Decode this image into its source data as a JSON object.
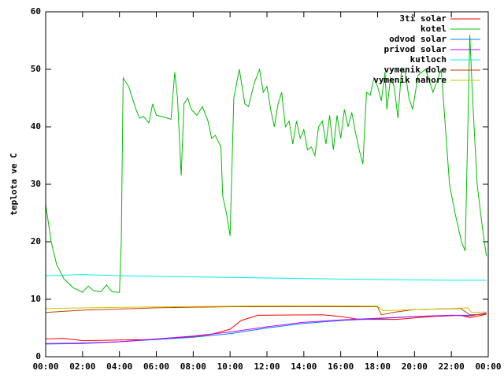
{
  "chart_data": {
    "type": "line",
    "y_label": "teplota ve C",
    "xlim": [
      0,
      24
    ],
    "ylim": [
      0,
      60
    ],
    "yticks": [
      0,
      10,
      20,
      30,
      40,
      50,
      60
    ],
    "xticks": [
      {
        "value": 0,
        "label": "00:00"
      },
      {
        "value": 2,
        "label": "02:00"
      },
      {
        "value": 4,
        "label": "04:00"
      },
      {
        "value": 6,
        "label": "06:00"
      },
      {
        "value": 8,
        "label": "08:00"
      },
      {
        "value": 10,
        "label": "10:00"
      },
      {
        "value": 12,
        "label": "12:00"
      },
      {
        "value": 14,
        "label": "14:00"
      },
      {
        "value": 16,
        "label": "16:00"
      },
      {
        "value": 18,
        "label": "18:00"
      },
      {
        "value": 20,
        "label": "20:00"
      },
      {
        "value": 22,
        "label": "22:00"
      },
      {
        "value": 24,
        "label": "00:00"
      }
    ],
    "legend": "top-right",
    "series": [
      {
        "name": "3ti solar",
        "color": "#ff0000",
        "x": [
          0,
          1,
          2,
          4,
          6,
          8,
          9,
          10,
          10.6,
          11.5,
          15,
          16,
          17,
          19,
          21,
          22.5,
          23,
          23.9
        ],
        "values": [
          3.1,
          3.2,
          2.8,
          2.9,
          3.0,
          3.5,
          3.9,
          4.8,
          6.3,
          7.2,
          7.3,
          7.0,
          6.5,
          6.5,
          7.0,
          7.2,
          6.8,
          7.4
        ]
      },
      {
        "name": "kotel",
        "color": "#00c000",
        "x": [
          0,
          0.3,
          0.6,
          1,
          1.5,
          2,
          2.3,
          2.6,
          3.0,
          3.3,
          3.6,
          4.0,
          4.1,
          4.2,
          4.5,
          4.9,
          5.1,
          5.3,
          5.6,
          5.8,
          6.0,
          6.4,
          6.8,
          7.0,
          7.15,
          7.35,
          7.5,
          7.7,
          7.9,
          8.2,
          8.5,
          8.8,
          9.0,
          9.2,
          9.5,
          9.6,
          9.8,
          10.0,
          10.2,
          10.5,
          10.8,
          11.0,
          11.3,
          11.6,
          11.8,
          12.0,
          12.2,
          12.4,
          12.6,
          12.8,
          13.0,
          13.2,
          13.4,
          13.6,
          13.8,
          14.0,
          14.2,
          14.4,
          14.6,
          14.8,
          15.0,
          15.2,
          15.4,
          15.6,
          15.8,
          16.0,
          16.2,
          16.4,
          16.6,
          16.8,
          17.0,
          17.2,
          17.4,
          17.6,
          17.8,
          18.0,
          18.2,
          18.4,
          18.5,
          18.7,
          18.9,
          19.1,
          19.3,
          19.5,
          19.7,
          19.9,
          20.2,
          20.6,
          21.0,
          21.45,
          21.9,
          22.2,
          22.55,
          22.75,
          23.0,
          23.15,
          23.4,
          23.7,
          23.9
        ],
        "values": [
          26.5,
          20,
          16,
          13.5,
          12,
          11.2,
          12.3,
          11.5,
          11.3,
          12.5,
          11.3,
          11.2,
          20,
          48.5,
          47,
          43,
          41.5,
          41.8,
          40.7,
          44,
          42,
          41.7,
          41.3,
          49.5,
          45,
          31.5,
          44,
          45,
          43,
          42,
          43.5,
          41,
          38,
          38.5,
          36.5,
          28,
          25,
          21,
          45,
          50,
          44,
          43.5,
          47.5,
          50,
          46,
          47,
          43,
          40,
          44,
          46,
          40,
          41,
          37,
          41,
          38,
          39.5,
          36,
          36.5,
          35,
          40,
          41,
          37,
          42,
          36,
          42,
          38,
          43,
          40,
          42.5,
          39,
          36,
          33.5,
          46,
          45.5,
          48.5,
          47,
          44.5,
          49.5,
          43,
          48.5,
          47,
          41.5,
          50,
          49.5,
          45,
          43,
          49,
          50,
          46,
          50,
          30,
          25,
          20,
          18.4,
          56,
          45,
          30,
          22,
          17.5
        ]
      },
      {
        "name": "odvod solar",
        "color": "#0080ff",
        "x": [
          0,
          2,
          4,
          6,
          8,
          10,
          12,
          14,
          16,
          18,
          20,
          22,
          23,
          23.9
        ],
        "values": [
          2.2,
          2.3,
          2.6,
          3.0,
          3.4,
          4.0,
          5.0,
          5.8,
          6.3,
          6.6,
          7.0,
          7.2,
          7.2,
          7.5
        ]
      },
      {
        "name": "privod solar",
        "color": "#c000ff",
        "x": [
          0,
          2,
          4,
          6,
          8,
          10,
          12,
          14,
          16,
          18,
          20,
          22,
          23,
          23.9
        ],
        "values": [
          2.3,
          2.4,
          2.6,
          3.1,
          3.6,
          4.3,
          5.2,
          6.0,
          6.4,
          6.7,
          7.0,
          7.2,
          7.1,
          7.6
        ]
      },
      {
        "name": "kutloch",
        "color": "#00eeee",
        "x": [
          0,
          2,
          4,
          10,
          16,
          22,
          23.9
        ],
        "values": [
          14.1,
          14.3,
          14.1,
          13.8,
          13.5,
          13.3,
          13.3
        ]
      },
      {
        "name": "vymenik dole",
        "color": "#c04000",
        "x": [
          0,
          2,
          6,
          10,
          18.0,
          18.2,
          19,
          20,
          22.5,
          23.0,
          23.9
        ],
        "values": [
          7.7,
          8.1,
          8.5,
          8.7,
          8.7,
          7.3,
          7.8,
          8.2,
          8.4,
          7.3,
          7.4
        ]
      },
      {
        "name": "vymenik nahore",
        "color": "#c8c800",
        "x": [
          0,
          4,
          10,
          14,
          18.0,
          18.3,
          20,
          22,
          22.9,
          23.1,
          23.9
        ],
        "values": [
          8.4,
          8.6,
          8.8,
          8.9,
          8.8,
          8.0,
          8.2,
          8.4,
          8.5,
          7.7,
          7.8
        ]
      }
    ]
  }
}
